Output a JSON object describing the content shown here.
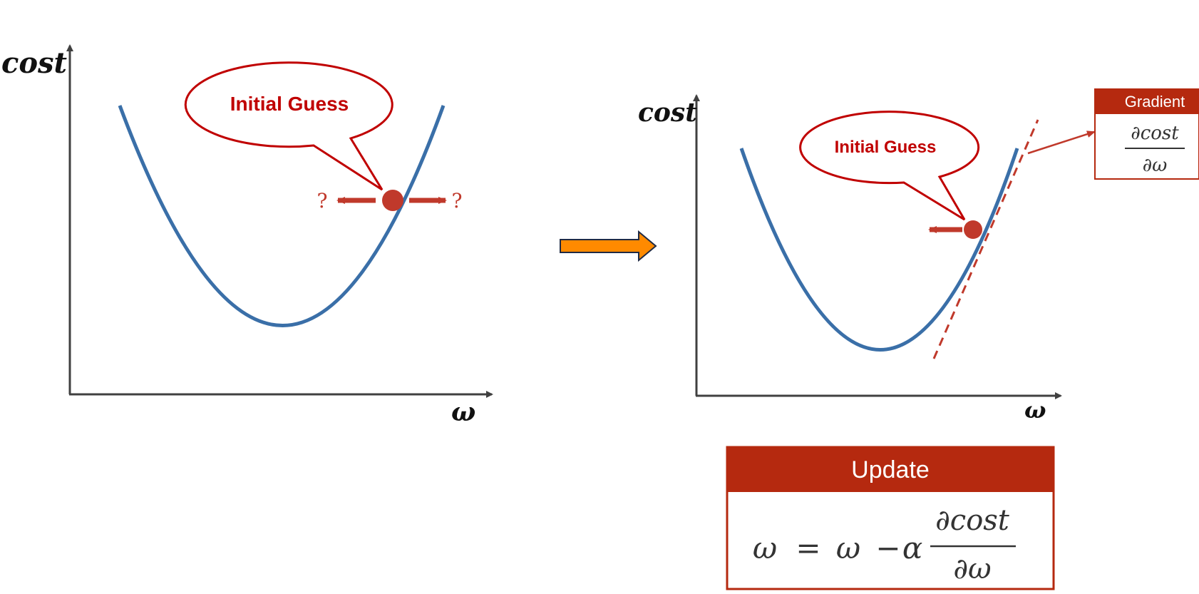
{
  "left_panel": {
    "y_axis_label": "cost",
    "x_axis_label": "ω",
    "bubble_text": "Initial Guess",
    "left_question": "?",
    "right_question": "?"
  },
  "right_panel": {
    "y_axis_label": "cost",
    "x_axis_label": "ω",
    "bubble_text": "Initial Guess"
  },
  "gradient_box": {
    "title": "Gradient",
    "numerator": "∂cost",
    "denominator": "∂ω"
  },
  "update_box": {
    "title": "Update",
    "lhs": "ω",
    "equals": "=",
    "term1": "ω",
    "minus": "−",
    "alpha": "α",
    "numerator": "∂cost",
    "denominator": "∂ω"
  },
  "colors": {
    "curve": "#3a6fa8",
    "accent_red": "#c0392b",
    "box_red": "#b5290f",
    "arrow_orange": "#ff8a00",
    "axis": "#404040"
  }
}
